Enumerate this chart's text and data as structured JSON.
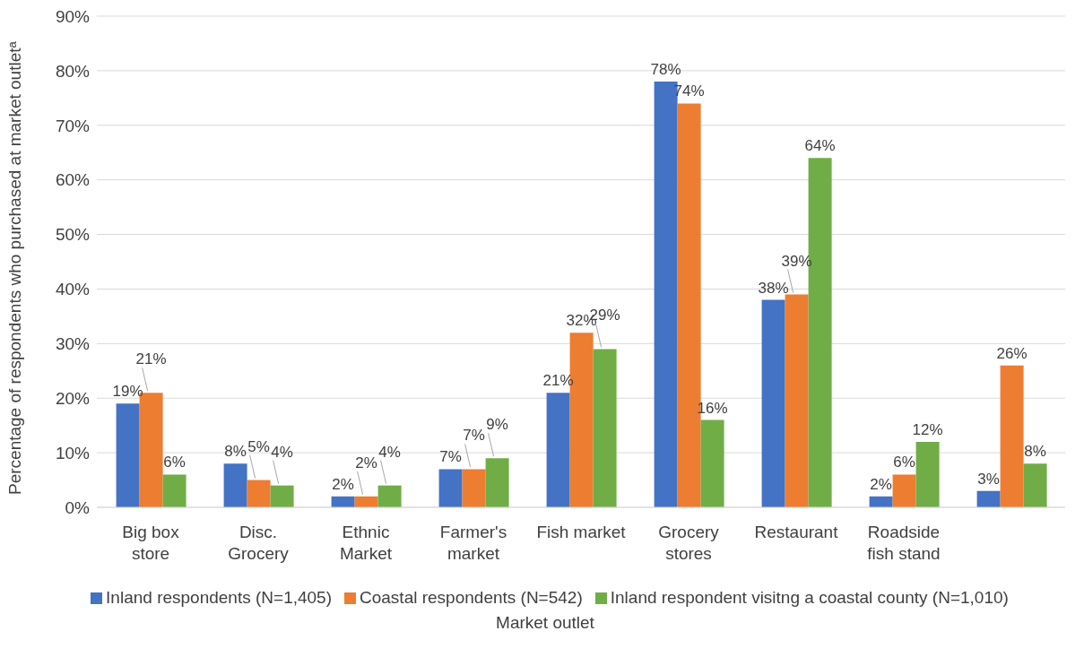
{
  "chart_data": {
    "type": "bar",
    "xlabel": "Market outlet",
    "ylabel": "Percentage of respondents who purchased at market outletᵃ",
    "categories": [
      "Big box store",
      "Disc. Grocery",
      "Ethnic Market",
      "Farmer's market",
      "Fish market",
      "Grocery stores",
      "Restaurant",
      "Roadside fish stand",
      null
    ],
    "series": [
      {
        "name": "Inland respondents (N=1,405)",
        "color": "#4472c4",
        "values": [
          19,
          8,
          2,
          7,
          21,
          78,
          38,
          2,
          3
        ],
        "value_labels": [
          "19%",
          "8%",
          "2%",
          "7%",
          "21%",
          "78%",
          "38%",
          "2%",
          "3%"
        ]
      },
      {
        "name": "Coastal respondents (N=542)",
        "color": "#ed7d31",
        "values": [
          21,
          5,
          2,
          7,
          32,
          74,
          39,
          6,
          26
        ],
        "value_labels": [
          "21%",
          "5%",
          "2%",
          "7%",
          "32%",
          "74%",
          "39%",
          "6%",
          "26%"
        ]
      },
      {
        "name": "Inland respondent visitng a coastal county (N=1,010)",
        "color": "#70ad47",
        "values": [
          6,
          4,
          4,
          9,
          29,
          16,
          64,
          12,
          8
        ],
        "value_labels": [
          "6%",
          "4%",
          "4%",
          "9%",
          "29%",
          "16%",
          "64%",
          "12%",
          "8%"
        ]
      }
    ],
    "ylim": [
      0,
      90
    ],
    "yticks": [
      {
        "value": 0,
        "label": "0%"
      },
      {
        "value": 10,
        "label": "10%"
      },
      {
        "value": 20,
        "label": "20%"
      },
      {
        "value": 30,
        "label": "30%"
      },
      {
        "value": 40,
        "label": "40%"
      },
      {
        "value": 50,
        "label": "50%"
      },
      {
        "value": 60,
        "label": "60%"
      },
      {
        "value": 70,
        "label": "70%"
      },
      {
        "value": 80,
        "label": "80%"
      },
      {
        "value": 90,
        "label": "90%"
      }
    ],
    "grid": "y",
    "legend": "bottom"
  }
}
